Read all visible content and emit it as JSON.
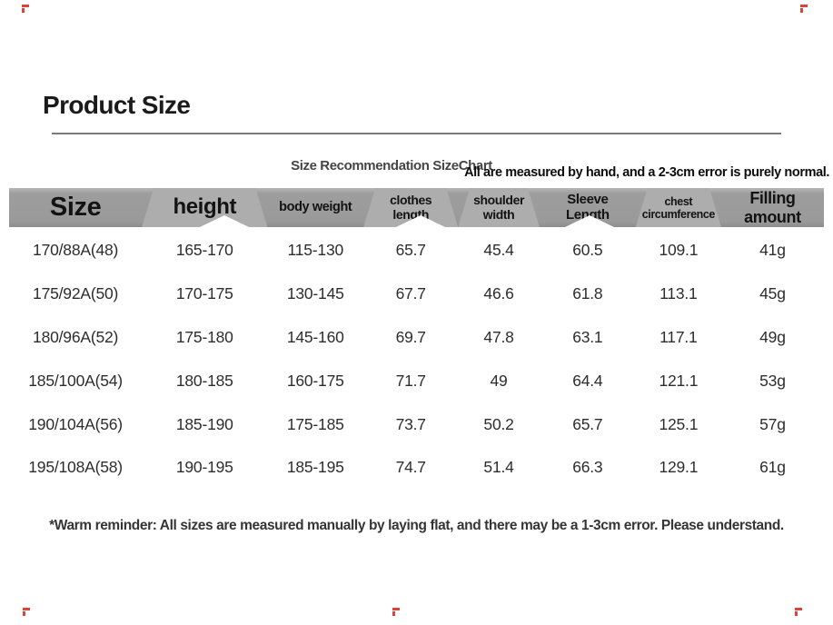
{
  "page": {
    "title": "Product Size",
    "subtitle": "Size Recommendation SizeChart",
    "note_right": "All are measured by hand, and a 2-3cm error is purely normal.",
    "footer_note": "*Warm reminder: All sizes are measured manually by laying flat, and there may be a 1-3cm error. Please understand."
  },
  "colors": {
    "header_band": "#9a9a9a",
    "header_band_light": "#adadad",
    "title_text": "#1b1b1b",
    "row_text": "#2d2d2d",
    "underline": "#7c7c7c",
    "corner_mark_red": "#d93025"
  },
  "table": {
    "headers": [
      [
        "Size"
      ],
      [
        "height"
      ],
      [
        "body weight"
      ],
      [
        "clothes",
        "length"
      ],
      [
        "shoulder",
        "width"
      ],
      [
        "Sleeve",
        "Length"
      ],
      [
        "chest",
        "circumference"
      ],
      [
        "Filling amount"
      ]
    ],
    "rows": [
      [
        "170/88A(48)",
        "165-170",
        "115-130",
        "65.7",
        "45.4",
        "60.5",
        "109.1",
        "41g"
      ],
      [
        "175/92A(50)",
        "170-175",
        "130-145",
        "67.7",
        "46.6",
        "61.8",
        "113.1",
        "45g"
      ],
      [
        "180/96A(52)",
        "175-180",
        "145-160",
        "69.7",
        "47.8",
        "63.1",
        "117.1",
        "49g"
      ],
      [
        "185/100A(54)",
        "180-185",
        "160-175",
        "71.7",
        "49",
        "64.4",
        "121.1",
        "53g"
      ],
      [
        "190/104A(56)",
        "185-190",
        "175-185",
        "73.7",
        "50.2",
        "65.7",
        "125.1",
        "57g"
      ],
      [
        "195/108A(58)",
        "190-195",
        "185-195",
        "74.7",
        "51.4",
        "66.3",
        "129.1",
        "61g"
      ]
    ]
  },
  "chart_data": {
    "type": "table",
    "title": "Size Recommendation SizeChart",
    "columns": [
      "Size",
      "height",
      "body weight",
      "clothes length",
      "shoulder width",
      "Sleeve Length",
      "chest circumference",
      "Filling amount"
    ],
    "rows": [
      [
        "170/88A(48)",
        "165-170",
        "115-130",
        "65.7",
        "45.4",
        "60.5",
        "109.1",
        "41g"
      ],
      [
        "175/92A(50)",
        "170-175",
        "130-145",
        "67.7",
        "46.6",
        "61.8",
        "113.1",
        "45g"
      ],
      [
        "180/96A(52)",
        "175-180",
        "145-160",
        "69.7",
        "47.8",
        "63.1",
        "117.1",
        "49g"
      ],
      [
        "185/100A(54)",
        "180-185",
        "160-175",
        "71.7",
        "49",
        "64.4",
        "121.1",
        "53g"
      ],
      [
        "190/104A(56)",
        "185-190",
        "175-185",
        "73.7",
        "50.2",
        "65.7",
        "125.1",
        "57g"
      ],
      [
        "195/108A(58)",
        "190-195",
        "185-195",
        "74.7",
        "51.4",
        "66.3",
        "129.1",
        "61g"
      ]
    ]
  }
}
